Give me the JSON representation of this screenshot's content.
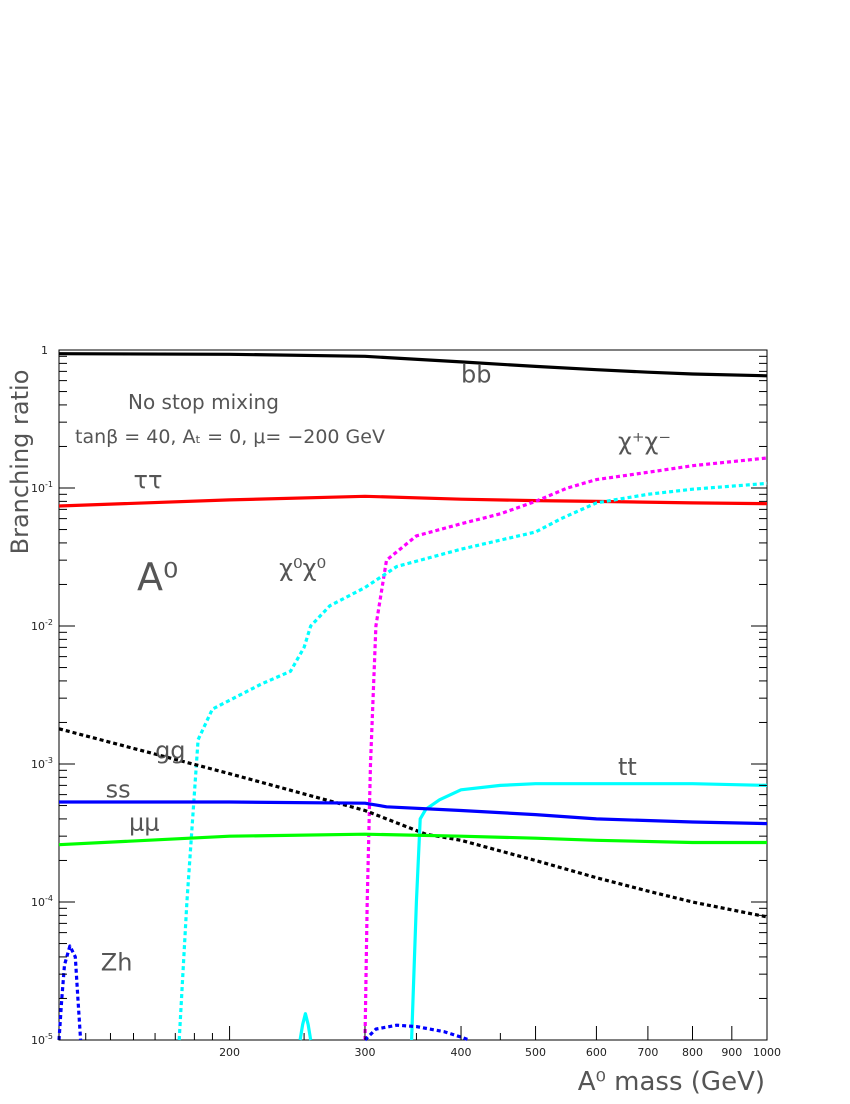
{
  "chart_data": {
    "type": "line",
    "ylabel": "Branching ratio",
    "xlabel": "A⁰ mass (GeV)",
    "x_scale": "log",
    "y_scale": "log",
    "xlim": [
      120,
      1000
    ],
    "ylim": [
      1e-05,
      1
    ],
    "x_tick_labels": [
      "200",
      "300",
      "400",
      "500",
      "600",
      "700",
      "800",
      "900",
      "1000"
    ],
    "y_tick_labels": [
      {
        "value": 1,
        "base": "1",
        "exp": ""
      },
      {
        "value": 0.1,
        "base": "10",
        "exp": "-1"
      },
      {
        "value": 0.01,
        "base": "10",
        "exp": "-2"
      },
      {
        "value": 0.001,
        "base": "10",
        "exp": "-3"
      },
      {
        "value": 0.0001,
        "base": "10",
        "exp": "-4"
      },
      {
        "value": 1e-05,
        "base": "10",
        "exp": "-5"
      }
    ],
    "annotations": {
      "line1": "No stop mixing",
      "line2": "tanβ = 40, Aₜ = 0, μ= −200 GeV",
      "particle": "A⁰"
    },
    "series": [
      {
        "name": "bb",
        "color": "#000000",
        "dash": false,
        "label_pos": [
          400,
          0.58
        ],
        "points": [
          [
            120,
            0.94
          ],
          [
            200,
            0.93
          ],
          [
            300,
            0.9
          ],
          [
            400,
            0.82
          ],
          [
            500,
            0.76
          ],
          [
            600,
            0.72
          ],
          [
            700,
            0.69
          ],
          [
            800,
            0.67
          ],
          [
            1000,
            0.65
          ]
        ]
      },
      {
        "name": "ττ",
        "color": "#ff0000",
        "dash": false,
        "label_pos": [
          150,
          0.1
        ],
        "points": [
          [
            120,
            0.074
          ],
          [
            200,
            0.082
          ],
          [
            300,
            0.087
          ],
          [
            400,
            0.083
          ],
          [
            500,
            0.081
          ],
          [
            600,
            0.08
          ],
          [
            800,
            0.078
          ],
          [
            1000,
            0.077
          ]
        ]
      },
      {
        "name": "χ⁺χ⁻",
        "color": "#ff00ff",
        "dash": true,
        "label_pos": [
          640,
          0.19
        ],
        "points": [
          [
            300,
            1e-05
          ],
          [
            302,
            0.0001
          ],
          [
            305,
            0.001
          ],
          [
            310,
            0.01
          ],
          [
            320,
            0.03
          ],
          [
            350,
            0.045
          ],
          [
            400,
            0.055
          ],
          [
            450,
            0.065
          ],
          [
            500,
            0.08
          ],
          [
            550,
            0.1
          ],
          [
            600,
            0.115
          ],
          [
            700,
            0.13
          ],
          [
            800,
            0.145
          ],
          [
            1000,
            0.165
          ]
        ]
      },
      {
        "name": "χ⁰χ⁰",
        "color": "#00ffff",
        "dash": true,
        "label_pos": [
          232,
          0.023
        ],
        "points": [
          [
            172,
            1e-05
          ],
          [
            176,
            0.0001
          ],
          [
            182,
            0.0015
          ],
          [
            190,
            0.0025
          ],
          [
            220,
            0.0038
          ],
          [
            240,
            0.0047
          ],
          [
            250,
            0.007
          ],
          [
            255,
            0.01
          ],
          [
            270,
            0.014
          ],
          [
            300,
            0.019
          ],
          [
            330,
            0.027
          ],
          [
            400,
            0.036
          ],
          [
            500,
            0.048
          ],
          [
            540,
            0.06
          ],
          [
            600,
            0.078
          ],
          [
            700,
            0.09
          ],
          [
            800,
            0.098
          ],
          [
            1000,
            0.108
          ]
        ]
      },
      {
        "name": "gg",
        "color": "#000000",
        "dash": true,
        "label_pos": [
          160,
          0.0011
        ],
        "points": [
          [
            120,
            0.0018
          ],
          [
            200,
            0.00085
          ],
          [
            300,
            0.00046
          ],
          [
            360,
            0.00031
          ],
          [
            400,
            0.00028
          ],
          [
            500,
            0.0002
          ],
          [
            600,
            0.00015
          ],
          [
            700,
            0.00012
          ],
          [
            800,
            0.0001
          ],
          [
            1000,
            7.8e-05
          ]
        ]
      },
      {
        "name": "tt",
        "color": "#00ffff",
        "dash": false,
        "label_pos": [
          640,
          0.00083
        ],
        "points": [
          [
            345,
            1e-05
          ],
          [
            350,
            0.0001
          ],
          [
            354,
            0.0004
          ],
          [
            360,
            0.00047
          ],
          [
            375,
            0.00055
          ],
          [
            400,
            0.00065
          ],
          [
            450,
            0.0007
          ],
          [
            500,
            0.00072
          ],
          [
            600,
            0.00072
          ],
          [
            800,
            0.00072
          ],
          [
            1000,
            0.0007
          ]
        ]
      },
      {
        "name": "ss",
        "color": "#0000ff",
        "dash": false,
        "label_pos": [
          138,
          0.00057
        ],
        "points": [
          [
            120,
            0.00053
          ],
          [
            200,
            0.00053
          ],
          [
            300,
            0.00052
          ],
          [
            320,
            0.00049
          ],
          [
            400,
            0.00046
          ],
          [
            500,
            0.00043
          ],
          [
            600,
            0.0004
          ],
          [
            800,
            0.00038
          ],
          [
            1000,
            0.00037
          ]
        ]
      },
      {
        "name": "μμ",
        "color": "#00ff00",
        "dash": false,
        "label_pos": [
          148,
          0.00033
        ],
        "points": [
          [
            120,
            0.00026
          ],
          [
            200,
            0.0003
          ],
          [
            300,
            0.00031
          ],
          [
            400,
            0.0003
          ],
          [
            500,
            0.00029
          ],
          [
            600,
            0.00028
          ],
          [
            800,
            0.00027
          ],
          [
            1000,
            0.00027
          ]
        ]
      },
      {
        "name": "Zh",
        "color": "#0000ff",
        "dash": true,
        "label_pos": [
          136,
          3.2e-05
        ],
        "points": [
          [
            120,
            1e-05
          ],
          [
            121,
            2e-05
          ],
          [
            122,
            3.5e-05
          ],
          [
            124,
            4.8e-05
          ],
          [
            126,
            4e-05
          ],
          [
            127,
            2e-05
          ],
          [
            128,
            1e-05
          ]
        ]
      },
      {
        "name": "",
        "color": "#0000ff",
        "dash": true,
        "points": [
          [
            300,
            1e-05
          ],
          [
            310,
            1.2e-05
          ],
          [
            330,
            1.28e-05
          ],
          [
            350,
            1.25e-05
          ],
          [
            380,
            1.15e-05
          ],
          [
            400,
            1.05e-05
          ],
          [
            410,
            1e-05
          ]
        ]
      },
      {
        "name": "",
        "color": "#00ffff",
        "dash": false,
        "points": [
          [
            247,
            1e-05
          ],
          [
            249,
            1.3e-05
          ],
          [
            251,
            1.55e-05
          ],
          [
            253,
            1.3e-05
          ],
          [
            255,
            1e-05
          ]
        ]
      }
    ]
  }
}
